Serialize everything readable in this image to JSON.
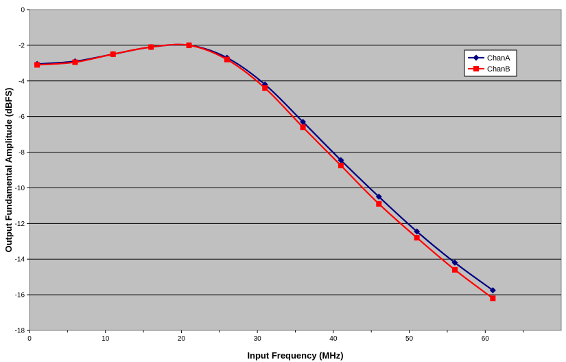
{
  "chart_data": {
    "type": "line",
    "title": "",
    "xlabel": "Input Frequency (MHz)",
    "ylabel": "Output Fundamental Amplitude (dBFS)",
    "xlim": [
      0,
      70
    ],
    "ylim": [
      -18,
      0
    ],
    "xticks": [
      0,
      10,
      20,
      30,
      40,
      50,
      60
    ],
    "yticks": [
      0,
      -2,
      -4,
      -6,
      -8,
      -10,
      -12,
      -14,
      -16,
      -18
    ],
    "grid": "horizontal",
    "legend_position": "top-right",
    "plot_background": "#c0c0c0",
    "x": [
      1,
      6,
      11,
      16,
      21,
      26,
      31,
      36,
      41,
      46,
      51,
      56,
      61
    ],
    "series": [
      {
        "name": "ChanA",
        "color": "#000080",
        "marker": "diamond",
        "values": [
          -3.05,
          -2.9,
          -2.5,
          -2.1,
          -2.0,
          -2.7,
          -4.2,
          -6.3,
          -8.45,
          -10.5,
          -12.45,
          -14.2,
          -15.75
        ]
      },
      {
        "name": "ChanB",
        "color": "#ff0000",
        "marker": "square",
        "values": [
          -3.1,
          -2.95,
          -2.5,
          -2.1,
          -2.0,
          -2.8,
          -4.4,
          -6.6,
          -8.75,
          -10.9,
          -12.8,
          -14.6,
          -16.2
        ]
      }
    ]
  }
}
